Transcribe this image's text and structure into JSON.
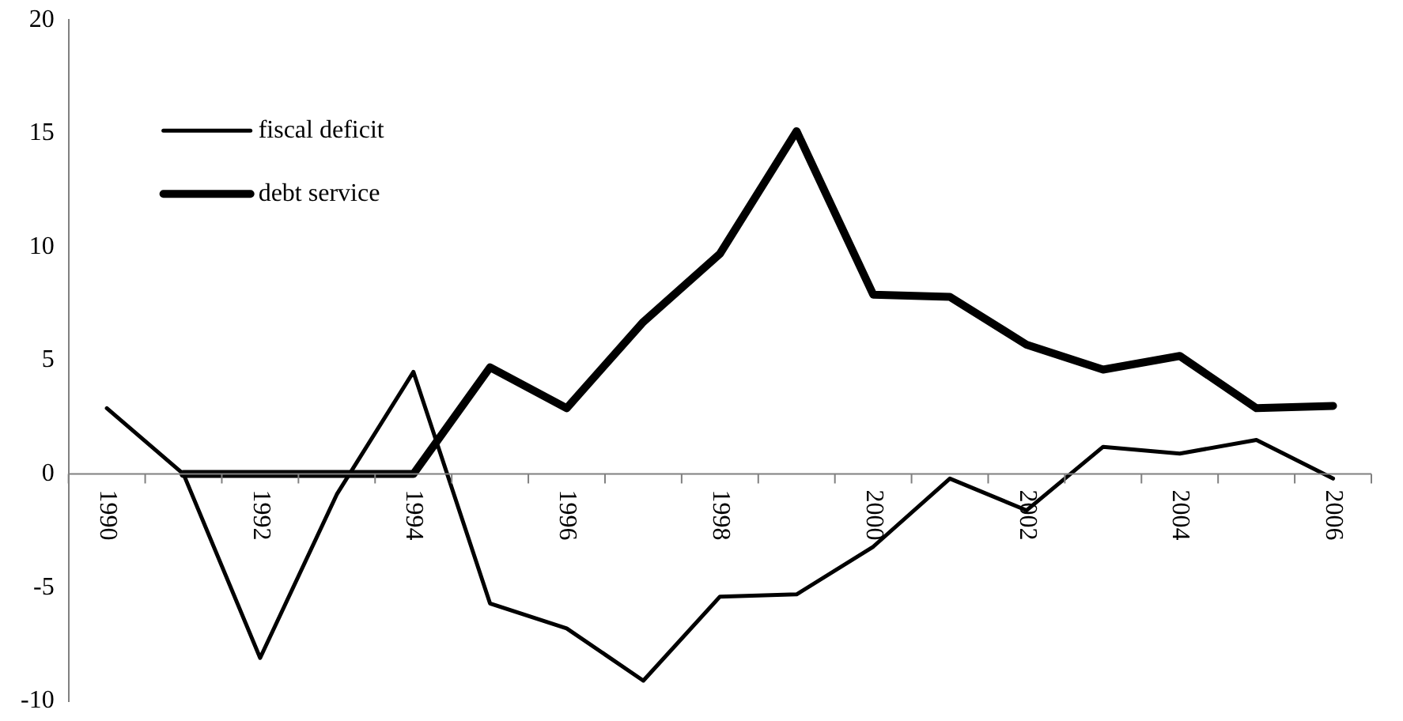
{
  "chart_data": {
    "type": "line",
    "categories": [
      "1990",
      null,
      "1992",
      null,
      "1994",
      null,
      "1996",
      null,
      "1998",
      null,
      "2000",
      null,
      "2002",
      null,
      "2004",
      null,
      "2006"
    ],
    "series": [
      {
        "name": "fiscal deficit",
        "color": "#000000",
        "values": [
          2.9,
          0,
          -8.1,
          -0.9,
          4.5,
          -5.7,
          -6.8,
          -9.1,
          -5.4,
          -5.3,
          -3.2,
          -0.2,
          -1.6,
          1.2,
          0.9,
          1.5,
          -0.2
        ]
      },
      {
        "name": "debt service",
        "color": "#000000",
        "values": [
          null,
          0,
          0,
          0,
          0,
          4.7,
          2.9,
          6.7,
          9.7,
          15.1,
          7.9,
          7.8,
          5.7,
          4.6,
          5.2,
          2.9,
          3.0
        ]
      }
    ],
    "ylim": [
      -10,
      20
    ],
    "yticks": [
      -10,
      -5,
      0,
      5,
      10,
      15,
      20
    ],
    "grid": false,
    "legend": "top left",
    "marker": "none",
    "line_style": "solid"
  }
}
